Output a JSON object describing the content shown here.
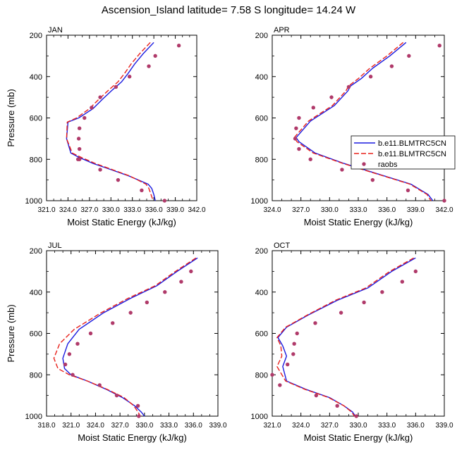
{
  "figure_title": "Ascension_Island  latitude= 7.58 S longitude= 14.24 W",
  "colors": {
    "model_1": "#1a1adf",
    "model_2": "#e8201a",
    "raobs": "#b03a6a"
  },
  "legend": {
    "entries": [
      "b.e11.BLMTRC5CN",
      "b.e11.BLMTRC5CN",
      "raobs"
    ],
    "placement": "right of APR panel"
  },
  "chart_data": [
    {
      "type": "line",
      "panel": "JAN",
      "xlabel": "Moist Static Energy (kJ/kg)",
      "ylabel": "Pressure (mb)",
      "xlim": [
        321.0,
        342.0
      ],
      "xticks": [
        "321.0",
        "324.0",
        "327.0",
        "330.0",
        "333.0",
        "336.0",
        "339.0",
        "342.0"
      ],
      "ylim": [
        1000,
        200
      ],
      "yticks": [
        "200",
        "400",
        "600",
        "800",
        "1000"
      ],
      "y_inverted": true,
      "series": [
        {
          "name": "b.e11.BLMTRC5CN",
          "style": "solid",
          "x": [
            336.0,
            334.5,
            333.3,
            332.4,
            331.5,
            330.2,
            328.8,
            327.5,
            325.5,
            324.0,
            323.8,
            324.4,
            325.5,
            327.5,
            330.0,
            332.5,
            335.2,
            335.7,
            336.0,
            336.2
          ],
          "y": [
            235,
            290,
            340,
            385,
            425,
            465,
            510,
            555,
            600,
            620,
            700,
            770,
            790,
            820,
            850,
            880,
            920,
            940,
            970,
            1000
          ]
        },
        {
          "name": "b.e11.BLMTRC5CN",
          "style": "dashed",
          "x": [
            335.5,
            334.0,
            332.8,
            331.9,
            331.0,
            329.7,
            328.3,
            327.0,
            325.2,
            323.9,
            323.8,
            324.6,
            325.8,
            327.8,
            330.2,
            332.6,
            334.9,
            335.3,
            335.6,
            335.9
          ],
          "y": [
            235,
            290,
            340,
            385,
            425,
            465,
            510,
            555,
            600,
            620,
            700,
            770,
            790,
            820,
            850,
            880,
            920,
            940,
            970,
            1000
          ]
        },
        {
          "name": "raobs",
          "style": "markers",
          "x": [
            339.5,
            336.2,
            335.3,
            332.6,
            330.7,
            328.5,
            327.3,
            326.3,
            325.6,
            325.5,
            325.6,
            325.4,
            325.6,
            328.5,
            331.0,
            334.3,
            337.5
          ],
          "y": [
            250,
            300,
            350,
            400,
            450,
            500,
            550,
            600,
            650,
            700,
            750,
            800,
            800,
            850,
            900,
            950,
            1000
          ]
        }
      ]
    },
    {
      "type": "line",
      "panel": "APR",
      "xlabel": "Moist Static Energy (kJ/kg)",
      "ylabel": "",
      "xlim": [
        324.0,
        342.0
      ],
      "xticks": [
        "324.0",
        "327.0",
        "330.0",
        "333.0",
        "336.0",
        "339.0",
        "342.0"
      ],
      "ylim": [
        1000,
        200
      ],
      "yticks": [
        "200",
        "400",
        "600",
        "800",
        "1000"
      ],
      "y_inverted": true,
      "series": [
        {
          "name": "b.e11.BLMTRC5CN",
          "style": "solid",
          "x": [
            338.0,
            336.3,
            334.5,
            333.3,
            332.2,
            331.9,
            330.5,
            328.0,
            326.5,
            326.8,
            328.5,
            331.5,
            335.0,
            338.5,
            340.3,
            340.8
          ],
          "y": [
            235,
            300,
            360,
            410,
            445,
            470,
            540,
            615,
            695,
            715,
            770,
            820,
            870,
            920,
            970,
            1000
          ]
        },
        {
          "name": "b.e11.BLMTRC5CN",
          "style": "dashed",
          "x": [
            337.7,
            336.0,
            334.2,
            333.0,
            332.0,
            331.7,
            330.3,
            327.8,
            326.3,
            326.6,
            328.3,
            331.4,
            334.9,
            338.4,
            340.2,
            340.6
          ],
          "y": [
            235,
            300,
            360,
            410,
            445,
            470,
            540,
            615,
            695,
            715,
            770,
            820,
            870,
            920,
            970,
            1000
          ]
        },
        {
          "name": "raobs",
          "style": "markers",
          "x": [
            341.5,
            338.3,
            336.5,
            334.3,
            332.0,
            330.2,
            328.3,
            326.8,
            326.5,
            326.4,
            326.8,
            328.0,
            331.3,
            334.5,
            338.2,
            342.0
          ],
          "y": [
            250,
            300,
            350,
            400,
            450,
            500,
            550,
            600,
            650,
            700,
            750,
            800,
            850,
            900,
            950,
            1000
          ]
        }
      ]
    },
    {
      "type": "line",
      "panel": "JUL",
      "xlabel": "Moist Static Energy (kJ/kg)",
      "ylabel": "Pressure (mb)",
      "xlim": [
        318.0,
        339.0
      ],
      "xticks": [
        "318.0",
        "321.0",
        "324.0",
        "327.0",
        "330.0",
        "333.0",
        "336.0",
        "339.0"
      ],
      "ylim": [
        1000,
        200
      ],
      "yticks": [
        "200",
        "400",
        "600",
        "800",
        "1000"
      ],
      "y_inverted": true,
      "series": [
        {
          "name": "b.e11.BLMTRC5CN",
          "style": "solid",
          "x": [
            336.5,
            334.0,
            331.5,
            328.3,
            325.0,
            322.0,
            320.6,
            320.0,
            320.2,
            321.0,
            323.0,
            325.3,
            327.3,
            328.8,
            329.6,
            330.0
          ],
          "y": [
            235,
            300,
            370,
            430,
            500,
            580,
            650,
            720,
            770,
            800,
            830,
            870,
            910,
            950,
            980,
            1000
          ]
        },
        {
          "name": "b.e11.BLMTRC5CN",
          "style": "dashed",
          "x": [
            336.3,
            333.8,
            331.3,
            328.0,
            324.7,
            321.4,
            319.6,
            318.9,
            319.4,
            320.8,
            323.0,
            325.4,
            327.5,
            328.7,
            329.2,
            329.5
          ],
          "y": [
            235,
            300,
            370,
            430,
            500,
            580,
            650,
            720,
            770,
            800,
            830,
            870,
            910,
            950,
            980,
            1000
          ]
        },
        {
          "name": "raobs",
          "style": "markers",
          "x": [
            335.7,
            334.5,
            332.5,
            330.3,
            328.3,
            326.1,
            323.4,
            321.8,
            320.8,
            320.3,
            321.2,
            324.5,
            326.6,
            329.2,
            329.3
          ],
          "y": [
            300,
            350,
            400,
            450,
            500,
            550,
            600,
            650,
            700,
            750,
            800,
            850,
            900,
            950,
            1000
          ]
        }
      ]
    },
    {
      "type": "line",
      "panel": "OCT",
      "xlabel": "Moist Static Energy (kJ/kg)",
      "ylabel": "",
      "xlim": [
        321.0,
        339.0
      ],
      "xticks": [
        "321.0",
        "324.0",
        "327.0",
        "330.0",
        "333.0",
        "336.0",
        "339.0"
      ],
      "ylim": [
        1000,
        200
      ],
      "yticks": [
        "200",
        "400",
        "600",
        "800",
        "1000"
      ],
      "y_inverted": true,
      "series": [
        {
          "name": "b.e11.BLMTRC5CN",
          "style": "solid",
          "x": [
            336.0,
            333.5,
            331.0,
            327.8,
            324.8,
            322.5,
            321.6,
            322.1,
            322.5,
            322.1,
            322.5,
            324.5,
            327.0,
            328.5,
            329.4,
            329.7
          ],
          "y": [
            235,
            300,
            380,
            440,
            510,
            570,
            620,
            660,
            710,
            760,
            830,
            870,
            910,
            950,
            980,
            1000
          ]
        },
        {
          "name": "b.e11.BLMTRC5CN",
          "style": "dashed",
          "x": [
            335.8,
            333.3,
            330.8,
            327.6,
            324.7,
            322.4,
            321.5,
            321.9,
            322.0,
            321.5,
            322.4,
            324.4,
            326.9,
            328.5,
            329.3,
            329.6
          ],
          "y": [
            235,
            300,
            380,
            440,
            510,
            570,
            620,
            660,
            710,
            760,
            830,
            870,
            910,
            950,
            980,
            1000
          ]
        },
        {
          "name": "raobs",
          "style": "markers",
          "x": [
            336.0,
            334.6,
            332.5,
            330.6,
            328.2,
            325.5,
            323.6,
            323.3,
            323.2,
            322.6,
            321.0,
            321.8,
            325.6,
            327.8,
            329.8
          ],
          "y": [
            300,
            350,
            400,
            450,
            500,
            550,
            600,
            650,
            700,
            750,
            800,
            850,
            900,
            950,
            1000
          ]
        }
      ]
    }
  ]
}
